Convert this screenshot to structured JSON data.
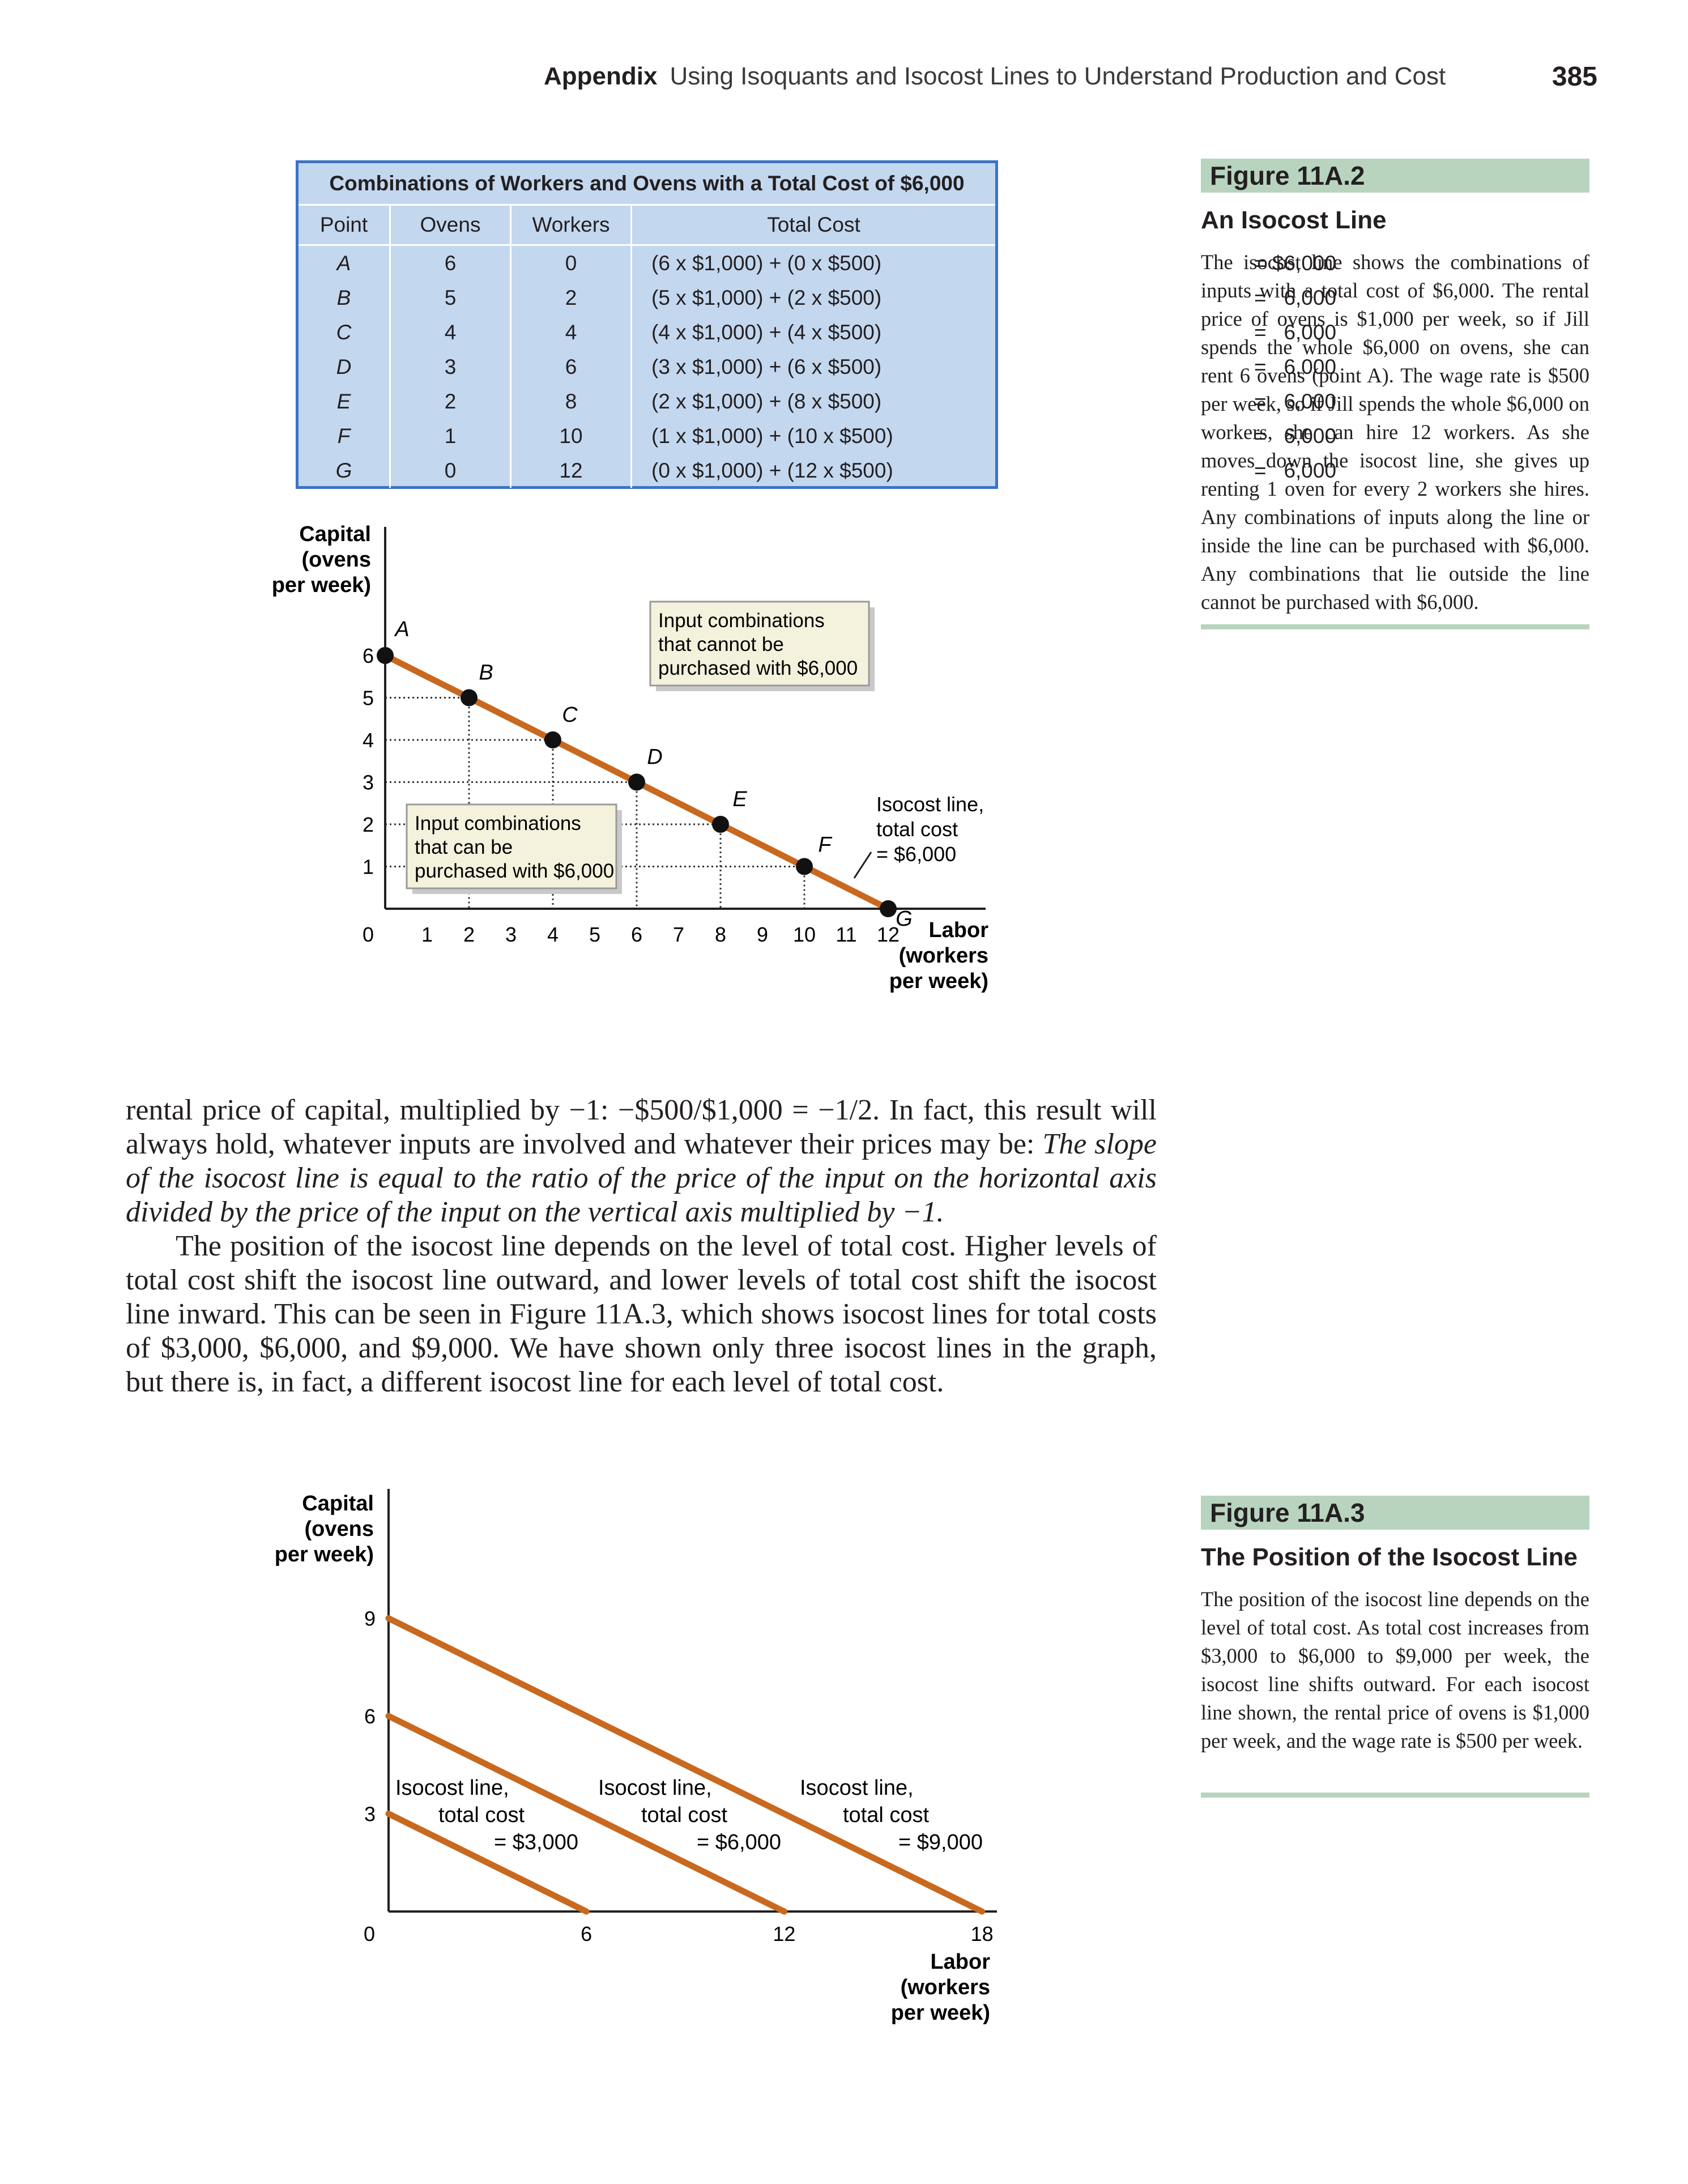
{
  "header": {
    "label": "Appendix",
    "title": "Using Isoquants and Isocost Lines to Understand Production and Cost",
    "page_number": "385"
  },
  "table": {
    "caption": "Combinations of Workers and Ovens with a Total Cost of $6,000",
    "columns": [
      "Point",
      "Ovens",
      "Workers",
      "Total Cost"
    ],
    "rows": [
      {
        "point": "A",
        "ovens": "6",
        "workers": "0",
        "cost": "(6 x $1,000) + (0 x $500)",
        "eq": "= $6,000"
      },
      {
        "point": "B",
        "ovens": "5",
        "workers": "2",
        "cost": "(5 x $1,000) + (2 x $500)",
        "eq": "=   6,000"
      },
      {
        "point": "C",
        "ovens": "4",
        "workers": "4",
        "cost": "(4 x $1,000) + (4 x $500)",
        "eq": "=   6,000"
      },
      {
        "point": "D",
        "ovens": "3",
        "workers": "6",
        "cost": "(3 x $1,000) + (6 x $500)",
        "eq": "=   6,000"
      },
      {
        "point": "E",
        "ovens": "2",
        "workers": "8",
        "cost": "(2 x $1,000) + (8 x $500)",
        "eq": "=   6,000"
      },
      {
        "point": "F",
        "ovens": "1",
        "workers": "10",
        "cost": "(1 x $1,000) + (10 x $500)",
        "eq": "=   6,000"
      },
      {
        "point": "G",
        "ovens": "0",
        "workers": "12",
        "cost": "(0 x $1,000) + (12 x $500)",
        "eq": "=   6,000"
      }
    ]
  },
  "figure1": {
    "label": "Figure 11A.2",
    "title": "An Isocost Line",
    "caption": "The isocost line shows the combinations of inputs with a total cost of $6,000. The rental price of ovens is $1,000 per week, so if Jill spends the whole $6,000 on ovens, she can rent 6 ovens (point A). The wage rate is $500 per week, so if Jill spends the whole $6,000 on workers, she can hire 12 workers. As she moves down the isocost line, she gives up renting 1 oven for every 2 workers she hires. Any combinations of inputs along the line or inside the line can be purchased with $6,000. Any combinations that lie outside the line cannot be purchased with $6,000."
  },
  "figure2": {
    "label": "Figure 11A.3",
    "title": "The Position of the Isocost Line",
    "caption": "The position of the isocost line depends on the level of total cost. As total cost increases from $3,000 to $6,000 to $9,000 per week, the isocost line shifts outward. For each isocost line shown, the rental price of ovens is $1,000 per week, and the wage rate is $500 per week."
  },
  "chart_data": [
    {
      "type": "line",
      "ylabel": [
        "Capital",
        "(ovens",
        "per week)"
      ],
      "xlabel": [
        "Labor",
        "(workers",
        "per week)"
      ],
      "xlim": [
        0,
        12
      ],
      "ylim": [
        0,
        6
      ],
      "x_ticks": [
        "0",
        "1",
        "2",
        "3",
        "4",
        "5",
        "6",
        "7",
        "8",
        "9",
        "10",
        "11",
        "12"
      ],
      "y_ticks": [
        "1",
        "2",
        "3",
        "4",
        "5",
        "6"
      ],
      "points": [
        {
          "label": "A",
          "x": 0,
          "y": 6
        },
        {
          "label": "B",
          "x": 2,
          "y": 5
        },
        {
          "label": "C",
          "x": 4,
          "y": 4
        },
        {
          "label": "D",
          "x": 6,
          "y": 3
        },
        {
          "label": "E",
          "x": 8,
          "y": 2
        },
        {
          "label": "F",
          "x": 10,
          "y": 1
        },
        {
          "label": "G",
          "x": 12,
          "y": 0
        }
      ],
      "line_color": "#c8691f",
      "annotations": {
        "outside": [
          "Input combinations",
          "that cannot be",
          "purchased with $6,000"
        ],
        "inside": [
          "Input combinations",
          "that can be",
          "purchased with $6,000"
        ],
        "line": [
          "Isocost line,",
          "total cost",
          "= $6,000"
        ]
      }
    },
    {
      "type": "line",
      "ylabel": [
        "Capital",
        "(ovens",
        "per week)"
      ],
      "xlabel": [
        "Labor",
        "(workers",
        "per week)"
      ],
      "xlim": [
        0,
        18
      ],
      "ylim": [
        0,
        9
      ],
      "x_ticks": [
        "0",
        "6",
        "12",
        "18"
      ],
      "y_ticks": [
        "3",
        "6",
        "9"
      ],
      "line_color": "#c8691f",
      "series": [
        {
          "x": [
            0,
            6
          ],
          "y": [
            3,
            0
          ],
          "label": [
            "Isocost line,",
            "total cost",
            "= $3,000"
          ]
        },
        {
          "x": [
            0,
            12
          ],
          "y": [
            6,
            0
          ],
          "label": [
            "Isocost line,",
            "total cost",
            "= $6,000"
          ]
        },
        {
          "x": [
            0,
            18
          ],
          "y": [
            9,
            0
          ],
          "label": [
            "Isocost line,",
            "total cost",
            "= $9,000"
          ]
        }
      ]
    }
  ],
  "main_text": {
    "p1_a": "rental price of capital, multiplied by −1: −$500/$1,000 = −1/2. In fact, this result will always hold, whatever inputs are involved and whatever their prices may be: ",
    "p1_em": "The slope of the isocost line is equal to the ratio of the price of the input on the horizontal axis divided by the price of the input on the vertical axis multiplied by −1.",
    "p2": "The position of the isocost line depends on the level of total cost. Higher levels of total cost shift the isocost line outward, and lower levels of total cost shift the isocost line inward. This can be seen in Figure 11A.3, which shows isocost lines for total costs of $3,000, $6,000, and $9,000. We have shown only three isocost lines in the graph, but there is, in fact, a different isocost line for each level of total cost."
  }
}
